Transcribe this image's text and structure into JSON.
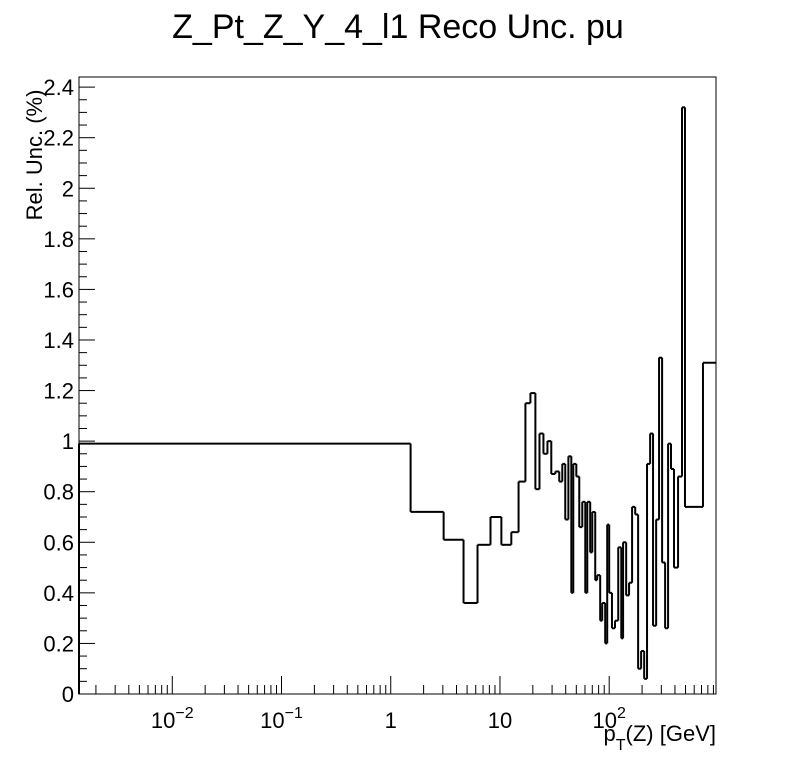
{
  "chart_data": {
    "type": "histogram",
    "title": "Z_Pt_Z_Y_4_l1 Reco Unc. pu",
    "x_label": {
      "base": "p",
      "subscript": "T",
      "rest": "(Z) [GeV]"
    },
    "y_label": "Rel. Unc. (%)",
    "x_log": true,
    "color": "#000000",
    "xlim": [
      0.0014,
      950
    ],
    "ylim": [
      0,
      2.44
    ],
    "xticks": [
      {
        "value": 0.01,
        "label": "10",
        "exponent": "−2"
      },
      {
        "value": 0.1,
        "label": "10",
        "exponent": "−1"
      },
      1,
      10,
      {
        "value": 100,
        "label": "10",
        "exponent": "2"
      }
    ],
    "yticks": [
      0,
      0.2,
      0.4,
      0.6,
      0.8,
      1,
      1.2,
      1.4,
      1.6,
      1.8,
      2,
      2.2,
      2.4
    ],
    "bins": [
      0.0014,
      1.52,
      3.05,
      4.64,
      6.23,
      8.19,
      10.3,
      12.7,
      14.8,
      17.1,
      19.0,
      21.1,
      23.0,
      25.0,
      27.2,
      29.5,
      32.1,
      34.9,
      37.2,
      39.6,
      42.3,
      45.0,
      46.9,
      50.0,
      53.2,
      56.7,
      60.4,
      63.0,
      67.0,
      70.0,
      74.5,
      77.6,
      82.7,
      86.3,
      91.9,
      95.9,
      100,
      106,
      113,
      121,
      129,
      134,
      143,
      152,
      162,
      173,
      184,
      196,
      209,
      222,
      237,
      252,
      269,
      286,
      305,
      325,
      346,
      368,
      392,
      427,
      464,
      494,
      722,
      950
    ],
    "values": [
      0.99,
      0.72,
      0.61,
      0.36,
      0.59,
      0.7,
      0.59,
      0.64,
      0.84,
      1.15,
      1.19,
      0.81,
      1.03,
      0.95,
      1.0,
      0.87,
      0.88,
      0.84,
      0.91,
      0.69,
      0.94,
      0.4,
      0.91,
      0.86,
      0.66,
      0.76,
      0.4,
      0.76,
      0.56,
      0.72,
      0.45,
      0.47,
      0.29,
      0.36,
      0.2,
      0.67,
      0.4,
      0.26,
      0.29,
      0.58,
      0.22,
      0.6,
      0.39,
      0.44,
      0.74,
      0.71,
      0.1,
      0.17,
      0.06,
      0.91,
      1.03,
      0.27,
      0.69,
      1.33,
      0.52,
      0.26,
      0.99,
      0.89,
      0.5,
      0.86,
      2.32,
      0.74,
      1.31
    ]
  }
}
